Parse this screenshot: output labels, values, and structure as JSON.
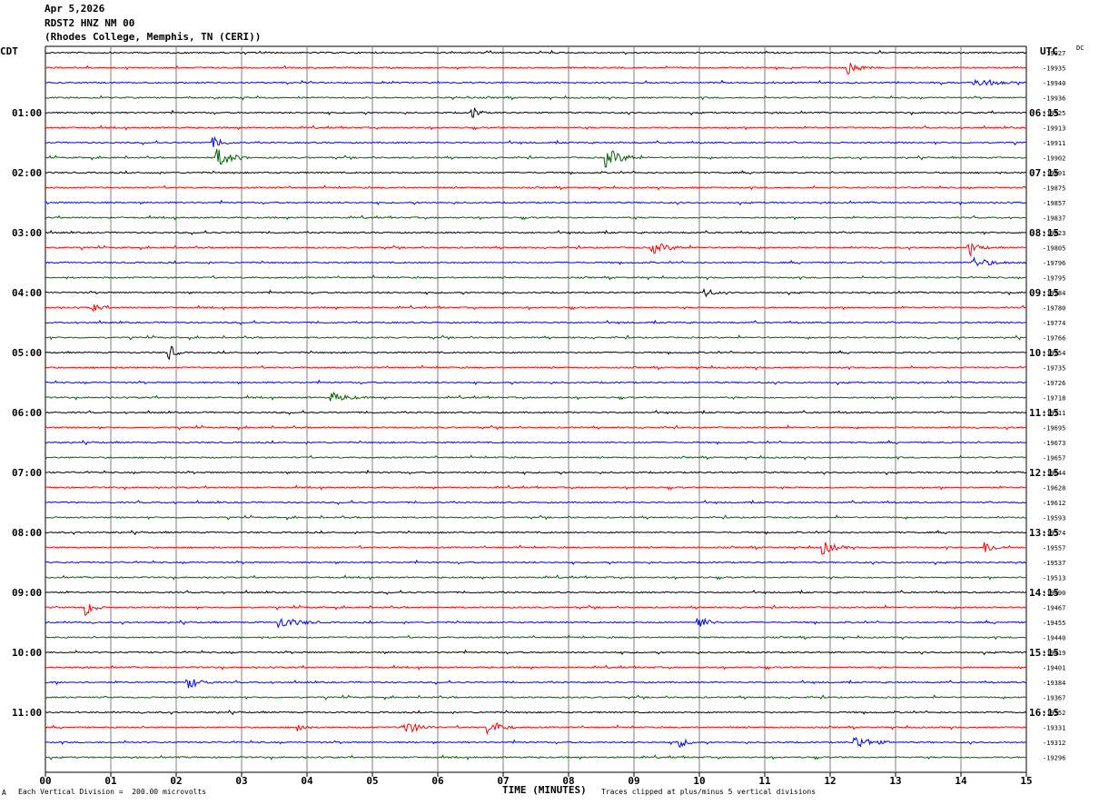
{
  "header": {
    "date": "Apr 5,2026",
    "station": "RDST2 HNZ NM 00",
    "location": "(Rhodes College, Memphis, TN (CERI))"
  },
  "left_tz": "CDT",
  "right_tz": "UTC",
  "right_top_label": "DC",
  "footer": {
    "scale_note": "Each Vertical Division =  200.00 microvolts",
    "clip_note": "Traces clipped at plus/minus 5 vertical divisions",
    "corner_mark": "A"
  },
  "colors": {
    "cycle": [
      "#000000",
      "#ff0000",
      "#0000ff",
      "#006400"
    ],
    "grid": "#808080"
  },
  "chart_data": {
    "type": "helicorder",
    "xlabel": "TIME (MINUTES)",
    "xlim": [
      0,
      15
    ],
    "x_ticks": [
      "00",
      "01",
      "02",
      "03",
      "04",
      "05",
      "06",
      "07",
      "08",
      "09",
      "10",
      "11",
      "12",
      "13",
      "14",
      "15"
    ],
    "left_time_labels": [
      {
        "row": 4,
        "text": "01:00"
      },
      {
        "row": 8,
        "text": "02:00"
      },
      {
        "row": 12,
        "text": "03:00"
      },
      {
        "row": 16,
        "text": "04:00"
      },
      {
        "row": 20,
        "text": "05:00"
      },
      {
        "row": 24,
        "text": "06:00"
      },
      {
        "row": 28,
        "text": "07:00"
      },
      {
        "row": 32,
        "text": "08:00"
      },
      {
        "row": 36,
        "text": "09:00"
      },
      {
        "row": 40,
        "text": "10:00"
      },
      {
        "row": 44,
        "text": "11:00"
      }
    ],
    "right_time_labels": [
      {
        "row": 4,
        "text": "06:15"
      },
      {
        "row": 8,
        "text": "07:15"
      },
      {
        "row": 12,
        "text": "08:15"
      },
      {
        "row": 16,
        "text": "09:15"
      },
      {
        "row": 20,
        "text": "10:15"
      },
      {
        "row": 24,
        "text": "11:15"
      },
      {
        "row": 28,
        "text": "12:15"
      },
      {
        "row": 32,
        "text": "13:15"
      },
      {
        "row": 36,
        "text": "14:15"
      },
      {
        "row": 40,
        "text": "15:15"
      },
      {
        "row": 44,
        "text": "16:15"
      }
    ],
    "dc_offsets": [
      "-19927",
      "-19935",
      "-19940",
      "-19936",
      "-19925",
      "-19913",
      "-19911",
      "-19902",
      "-19891",
      "-19875",
      "-19857",
      "-19837",
      "-19823",
      "-19805",
      "-19796",
      "-19795",
      "-19784",
      "-19780",
      "-19774",
      "-19766",
      "-19754",
      "-19735",
      "-19726",
      "-19718",
      "-19711",
      "-19695",
      "-19673",
      "-19657",
      "-19644",
      "-19628",
      "-19612",
      "-19593",
      "-19574",
      "-19557",
      "-19537",
      "-19513",
      "-19490",
      "-19467",
      "-19455",
      "-19440",
      "-19419",
      "-19401",
      "-19384",
      "-19367",
      "-19352",
      "-19331",
      "-19312",
      "-19296"
    ],
    "events": [
      {
        "row": 1,
        "minute": 12.3,
        "amp": 7,
        "dur": 0.35
      },
      {
        "row": 2,
        "minute": 14.2,
        "amp": 5,
        "dur": 0.6
      },
      {
        "row": 4,
        "minute": 6.55,
        "amp": 7,
        "dur": 0.2
      },
      {
        "row": 6,
        "minute": 2.6,
        "amp": 5,
        "dur": 0.3
      },
      {
        "row": 7,
        "minute": 2.65,
        "amp": 10,
        "dur": 0.45
      },
      {
        "row": 7,
        "minute": 8.6,
        "amp": 10,
        "dur": 0.5
      },
      {
        "row": 13,
        "minute": 9.3,
        "amp": 6,
        "dur": 0.5
      },
      {
        "row": 13,
        "minute": 14.15,
        "amp": 7,
        "dur": 0.3
      },
      {
        "row": 14,
        "minute": 14.2,
        "amp": 5,
        "dur": 0.6
      },
      {
        "row": 16,
        "minute": 10.1,
        "amp": 5,
        "dur": 0.25
      },
      {
        "row": 17,
        "minute": 0.75,
        "amp": 4,
        "dur": 0.25
      },
      {
        "row": 20,
        "minute": 1.9,
        "amp": 9,
        "dur": 0.2
      },
      {
        "row": 23,
        "minute": 4.4,
        "amp": 5,
        "dur": 0.5
      },
      {
        "row": 33,
        "minute": 11.9,
        "amp": 7,
        "dur": 0.4
      },
      {
        "row": 33,
        "minute": 14.4,
        "amp": 6,
        "dur": 0.3
      },
      {
        "row": 37,
        "minute": 0.65,
        "amp": 8,
        "dur": 0.25
      },
      {
        "row": 38,
        "minute": 3.6,
        "amp": 6,
        "dur": 0.6
      },
      {
        "row": 38,
        "minute": 10.0,
        "amp": 7,
        "dur": 0.3
      },
      {
        "row": 42,
        "minute": 2.2,
        "amp": 6,
        "dur": 0.4
      },
      {
        "row": 45,
        "minute": 3.9,
        "amp": 6,
        "dur": 0.15
      },
      {
        "row": 45,
        "minute": 5.5,
        "amp": 7,
        "dur": 0.5
      },
      {
        "row": 45,
        "minute": 6.8,
        "amp": 8,
        "dur": 0.4
      },
      {
        "row": 46,
        "minute": 12.4,
        "amp": 7,
        "dur": 0.5
      },
      {
        "row": 46,
        "minute": 9.7,
        "amp": 5,
        "dur": 0.3
      }
    ]
  }
}
